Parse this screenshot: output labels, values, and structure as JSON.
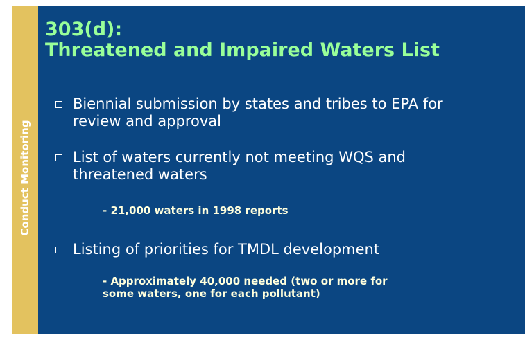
{
  "sidebar": {
    "label": "Conduct Monitoring"
  },
  "title": {
    "lines": [
      "303(d):",
      "Threatened and Impaired Waters List"
    ]
  },
  "bullets": [
    {
      "lines": [
        "Biennial submission by states and tribes to EPA for",
        "review and approval"
      ]
    },
    {
      "lines": [
        "List of waters currently not meeting WQS and",
        "threatened waters"
      ],
      "sub": [
        "- 21,000 waters in 1998 reports"
      ]
    },
    {
      "lines": [
        "Listing of priorities for TMDL development"
      ],
      "sub": [
        "- Approximately 40,000 needed (two or more for",
        "some waters, one for each pollutant)"
      ]
    }
  ]
}
